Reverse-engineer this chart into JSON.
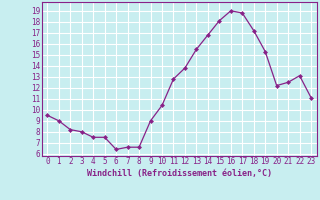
{
  "x": [
    0,
    1,
    2,
    3,
    4,
    5,
    6,
    7,
    8,
    9,
    10,
    11,
    12,
    13,
    14,
    15,
    16,
    17,
    18,
    19,
    20,
    21,
    22,
    23
  ],
  "y": [
    9.5,
    9.0,
    8.2,
    8.0,
    7.5,
    7.5,
    6.4,
    6.6,
    6.6,
    9.0,
    10.4,
    12.8,
    13.8,
    15.5,
    16.8,
    18.1,
    19.0,
    18.8,
    17.2,
    15.3,
    12.2,
    12.5,
    13.1,
    11.1
  ],
  "line_color": "#882288",
  "marker": "D",
  "marker_size": 2.0,
  "bg_color": "#c8eef0",
  "grid_color": "#ffffff",
  "xlabel": "Windchill (Refroidissement éolien,°C)",
  "xlim": [
    -0.5,
    23.5
  ],
  "ylim": [
    5.8,
    19.8
  ],
  "yticks": [
    6,
    7,
    8,
    9,
    10,
    11,
    12,
    13,
    14,
    15,
    16,
    17,
    18,
    19
  ],
  "xticks": [
    0,
    1,
    2,
    3,
    4,
    5,
    6,
    7,
    8,
    9,
    10,
    11,
    12,
    13,
    14,
    15,
    16,
    17,
    18,
    19,
    20,
    21,
    22,
    23
  ],
  "tick_color": "#882288",
  "label_color": "#882288",
  "spine_color": "#882288",
  "tick_fontsize": 5.5,
  "xlabel_fontsize": 6.0
}
